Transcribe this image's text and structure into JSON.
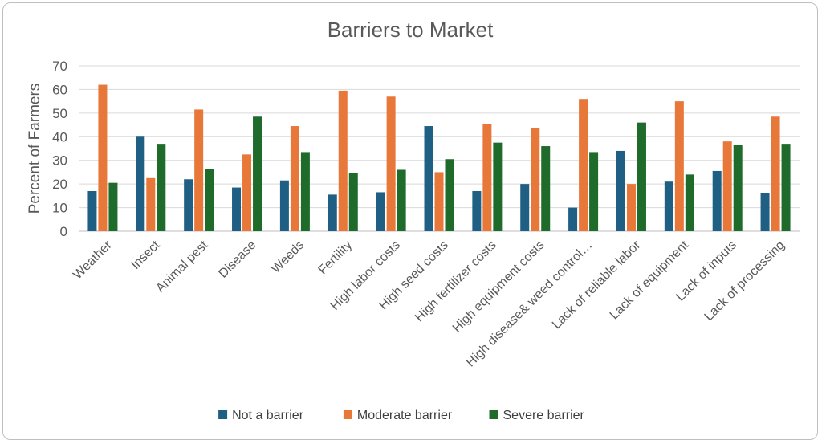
{
  "chart_data": {
    "type": "bar",
    "title": "Barriers to Market",
    "xlabel": "",
    "ylabel": "Percent of Farmers",
    "ylim": [
      0,
      70
    ],
    "yticks": [
      0,
      10,
      20,
      30,
      40,
      50,
      60,
      70
    ],
    "grid": true,
    "legend_position": "bottom",
    "categories": [
      "Weather",
      "Insect",
      "Animal pest",
      "Disease",
      "Weeds",
      "Fertility",
      "High labor costs",
      "High seed costs",
      "High fertilizer costs",
      "High equipment costs",
      "High disease& weed control…",
      "Lack of reliable labor",
      "Lack of equipment",
      "Lack of inputs",
      "Lack of processing"
    ],
    "series": [
      {
        "name": "Not a barrier",
        "color": "#1f5f84",
        "values": [
          17,
          40,
          22,
          18.5,
          21.5,
          15.5,
          16.5,
          44.5,
          17,
          20,
          10,
          34,
          21,
          25.5,
          16
        ]
      },
      {
        "name": "Moderate barrier",
        "color": "#e8773a",
        "values": [
          62,
          22.5,
          51.5,
          32.5,
          44.5,
          59.5,
          57,
          25,
          45.5,
          43.5,
          56,
          20,
          55,
          38,
          48.5
        ]
      },
      {
        "name": "Severe barrier",
        "color": "#1e6b2b",
        "values": [
          20.5,
          37,
          26.5,
          48.5,
          33.5,
          24.5,
          26,
          30.5,
          37.5,
          36,
          33.5,
          46,
          24,
          36.5,
          37
        ]
      }
    ]
  }
}
